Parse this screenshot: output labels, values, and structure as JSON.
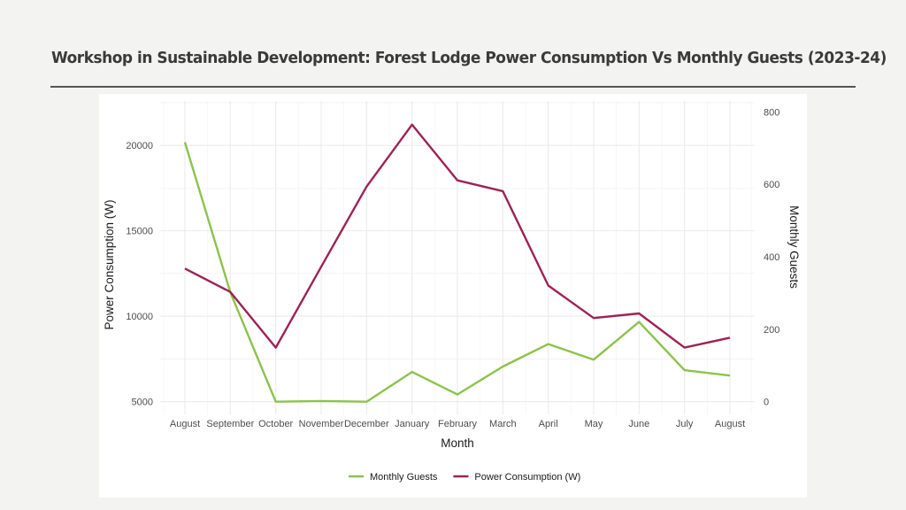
{
  "page": {
    "title": "Workshop in Sustainable Development: Forest Lodge Power Consumption Vs Monthly Guests (2023-24)"
  },
  "chart_data": {
    "type": "line",
    "title": "Workshop in Sustainable Development: Forest Lodge Power Consumption Vs Monthly Guests (2023-24)",
    "xlabel": "Month",
    "ylabel": "Power Consumption (W)",
    "y2label": "Monthly Guests",
    "categories": [
      "August",
      "September",
      "October",
      "November",
      "December",
      "January",
      "February",
      "March",
      "April",
      "May",
      "June",
      "July",
      "August"
    ],
    "y_ticks": [
      5000,
      10000,
      15000,
      20000
    ],
    "y_tick_labels": [
      "5000",
      "10000",
      "15000",
      "20000"
    ],
    "y2_ticks": [
      0,
      200,
      400,
      600,
      800
    ],
    "y2_tick_labels": [
      "0",
      "200",
      "400",
      "600",
      "800"
    ],
    "ylim": [
      4250,
      22600
    ],
    "y2lim": [
      -35,
      830
    ],
    "grid": true,
    "legend_position": "bottom",
    "series": [
      {
        "name": "Monthly Guests",
        "axis": "right",
        "color": "#8bc34a",
        "values": [
          716,
          302,
          0,
          2,
          0,
          82,
          20,
          97,
          159,
          116,
          220,
          87,
          72
        ]
      },
      {
        "name": "Power Consumption (W)",
        "axis": "left",
        "color": "#9c2257",
        "values": [
          12790,
          11420,
          8160,
          12890,
          17580,
          21210,
          17950,
          17320,
          11790,
          9890,
          10160,
          8160,
          8740
        ]
      }
    ]
  }
}
